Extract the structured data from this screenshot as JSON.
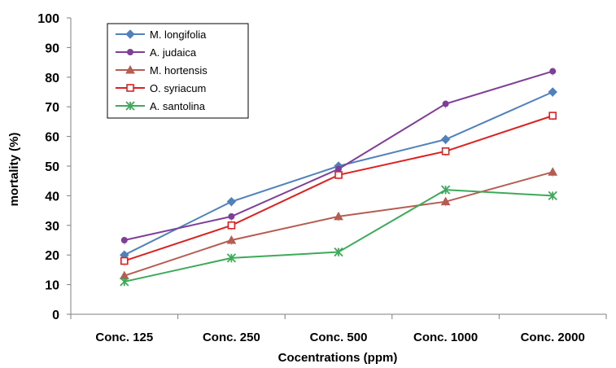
{
  "chart_data": {
    "type": "line",
    "title": "",
    "xlabel": "Cocentrations (ppm)",
    "ylabel": "mortality (%)",
    "categories": [
      "Conc. 125",
      "Conc. 250",
      "Conc. 500",
      "Conc. 1000",
      "Conc. 2000"
    ],
    "ylim": [
      0,
      100
    ],
    "yticks": [
      0,
      10,
      20,
      30,
      40,
      50,
      60,
      70,
      80,
      90,
      100
    ],
    "grid": false,
    "legend_position": "top-left",
    "series": [
      {
        "name": "M. longifolia",
        "color": "#4F81BD",
        "marker": "diamond",
        "values": [
          20,
          38,
          50,
          59,
          75
        ]
      },
      {
        "name": "A. judaica",
        "color": "#7F3F98",
        "marker": "circle",
        "values": [
          25,
          33,
          49,
          71,
          82
        ]
      },
      {
        "name": "M. hortensis",
        "color": "#B65C50",
        "marker": "triangle",
        "values": [
          13,
          25,
          33,
          38,
          48
        ]
      },
      {
        "name": "O. syriacum",
        "color": "#E02020",
        "marker": "square-open",
        "values": [
          18,
          30,
          47,
          55,
          67
        ]
      },
      {
        "name": "A. santolina",
        "color": "#3DAA5A",
        "marker": "star",
        "values": [
          11,
          19,
          21,
          42,
          40
        ]
      }
    ]
  }
}
